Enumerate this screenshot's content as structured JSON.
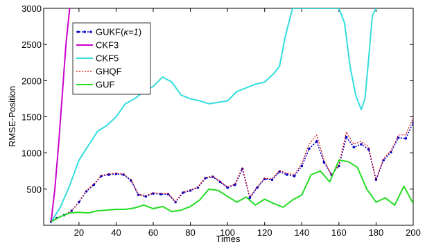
{
  "chart_data": {
    "type": "line",
    "xlabel": "Times",
    "ylabel": "RMSE-Position",
    "xlim": [
      1,
      200
    ],
    "ylim": [
      0,
      3000
    ],
    "xticks": [
      20,
      40,
      60,
      80,
      100,
      120,
      140,
      160,
      180,
      200
    ],
    "yticks": [
      500,
      1000,
      1500,
      2000,
      2500,
      3000
    ],
    "grid": false,
    "legend_position": "top-left",
    "series": [
      {
        "name": "GUKF(",
        "name_kappa": "κ=1",
        "name_close": ")",
        "color": "#0000cc",
        "style": "dotted-marker",
        "x": [
          5,
          8,
          12,
          16,
          20,
          24,
          28,
          32,
          36,
          40,
          44,
          48,
          52,
          56,
          60,
          64,
          68,
          72,
          76,
          80,
          84,
          88,
          92,
          96,
          100,
          104,
          108,
          112,
          116,
          120,
          124,
          128,
          132,
          136,
          140,
          144,
          148,
          152,
          156,
          160,
          164,
          168,
          172,
          176,
          180,
          184,
          188,
          192,
          196,
          200
        ],
        "y": [
          50,
          100,
          140,
          200,
          320,
          470,
          560,
          680,
          700,
          710,
          700,
          620,
          420,
          400,
          440,
          430,
          430,
          320,
          450,
          480,
          520,
          650,
          670,
          600,
          520,
          560,
          780,
          380,
          520,
          640,
          630,
          740,
          700,
          680,
          820,
          1060,
          1160,
          870,
          700,
          820,
          1220,
          1080,
          1120,
          1050,
          630,
          900,
          1010,
          1210,
          1200,
          1420
        ]
      },
      {
        "name": "CKF3",
        "color": "#cc00cc",
        "style": "solid",
        "x": [
          5,
          7,
          9,
          11,
          13,
          15
        ],
        "y": [
          50,
          500,
          1100,
          1800,
          2500,
          3000
        ]
      },
      {
        "name": "CKF5",
        "color": "#33dddd",
        "style": "solid",
        "x": [
          5,
          10,
          15,
          20,
          25,
          30,
          35,
          40,
          45,
          50,
          55,
          60,
          65,
          70,
          75,
          80,
          85,
          90,
          95,
          100,
          105,
          110,
          115,
          120,
          125,
          128,
          131,
          135,
          160,
          163,
          166,
          169,
          172,
          174,
          176,
          178,
          180
        ],
        "y": [
          50,
          250,
          550,
          900,
          1100,
          1300,
          1380,
          1500,
          1680,
          1750,
          1850,
          1920,
          2050,
          1980,
          1800,
          1750,
          1720,
          1680,
          1700,
          1720,
          1850,
          1900,
          1950,
          1980,
          2100,
          2200,
          2600,
          3000,
          3000,
          2800,
          2200,
          1800,
          1600,
          1750,
          2300,
          2900,
          3000
        ]
      },
      {
        "name": "GHQF",
        "color": "#dd0000",
        "style": "dotted",
        "x": [
          5,
          8,
          12,
          16,
          20,
          24,
          28,
          32,
          36,
          40,
          44,
          48,
          52,
          56,
          60,
          64,
          68,
          72,
          76,
          80,
          84,
          88,
          92,
          96,
          100,
          104,
          108,
          112,
          116,
          120,
          124,
          128,
          132,
          136,
          140,
          144,
          148,
          152,
          156,
          160,
          164,
          168,
          172,
          176,
          180,
          184,
          188,
          192,
          196,
          200
        ],
        "y": [
          50,
          100,
          140,
          200,
          330,
          480,
          570,
          690,
          710,
          720,
          710,
          630,
          430,
          410,
          450,
          440,
          440,
          330,
          460,
          490,
          530,
          660,
          680,
          610,
          530,
          570,
          800,
          390,
          530,
          650,
          640,
          760,
          720,
          700,
          860,
          1120,
          1250,
          900,
          690,
          840,
          1290,
          1120,
          1160,
          1080,
          620,
          920,
          1030,
          1250,
          1250,
          1490
        ]
      },
      {
        "name": "GUF",
        "color": "#22dd22",
        "style": "solid",
        "x": [
          5,
          10,
          15,
          20,
          25,
          30,
          35,
          40,
          45,
          50,
          55,
          60,
          65,
          70,
          75,
          80,
          85,
          90,
          95,
          100,
          105,
          110,
          115,
          120,
          125,
          130,
          135,
          140,
          145,
          150,
          155,
          160,
          165,
          170,
          175,
          180,
          185,
          190,
          195,
          200
        ],
        "y": [
          50,
          120,
          170,
          180,
          170,
          200,
          210,
          220,
          220,
          240,
          280,
          230,
          260,
          190,
          210,
          260,
          350,
          500,
          480,
          400,
          320,
          390,
          280,
          360,
          300,
          250,
          350,
          420,
          700,
          750,
          600,
          900,
          880,
          800,
          500,
          320,
          380,
          280,
          540,
          300
        ]
      }
    ]
  }
}
